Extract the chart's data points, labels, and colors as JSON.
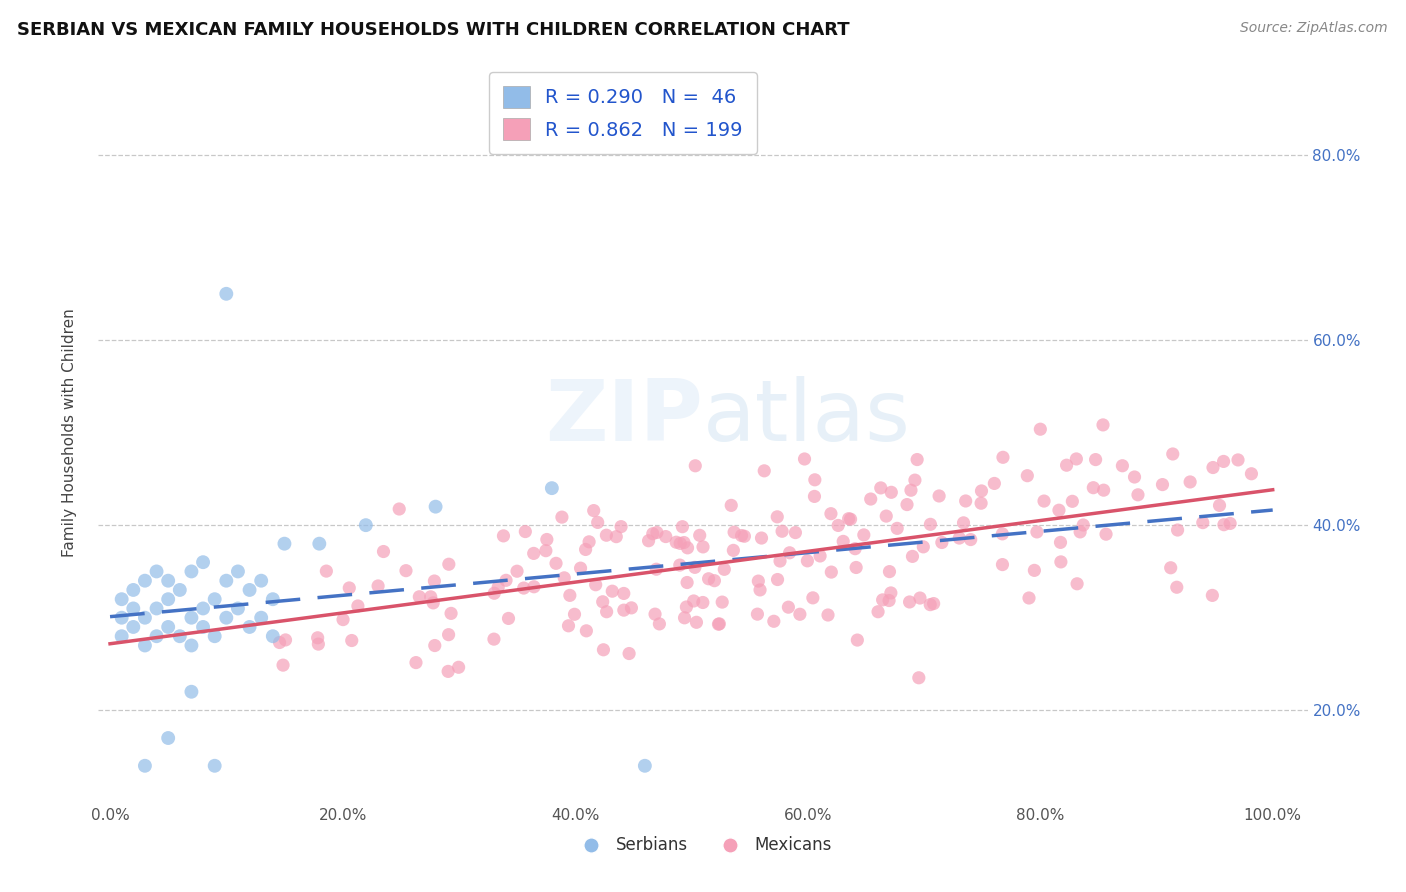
{
  "title": "SERBIAN VS MEXICAN FAMILY HOUSEHOLDS WITH CHILDREN CORRELATION CHART",
  "source": "Source: ZipAtlas.com",
  "ylabel": "Family Households with Children",
  "xlabel_vals": [
    0,
    20,
    40,
    60,
    80,
    100
  ],
  "ylabel_vals": [
    20,
    40,
    60,
    80
  ],
  "ylim": [
    10,
    90
  ],
  "xlim": [
    -1,
    103
  ],
  "serbian_color": "#92bce8",
  "mexican_color": "#f5a0b8",
  "serbian_line_color": "#4472c4",
  "mexican_line_color": "#d9536a",
  "serbian_R": 0.29,
  "serbian_N": 46,
  "mexican_R": 0.862,
  "mexican_N": 199,
  "legend_serbian_label": "Serbians",
  "legend_mexican_label": "Mexicans"
}
